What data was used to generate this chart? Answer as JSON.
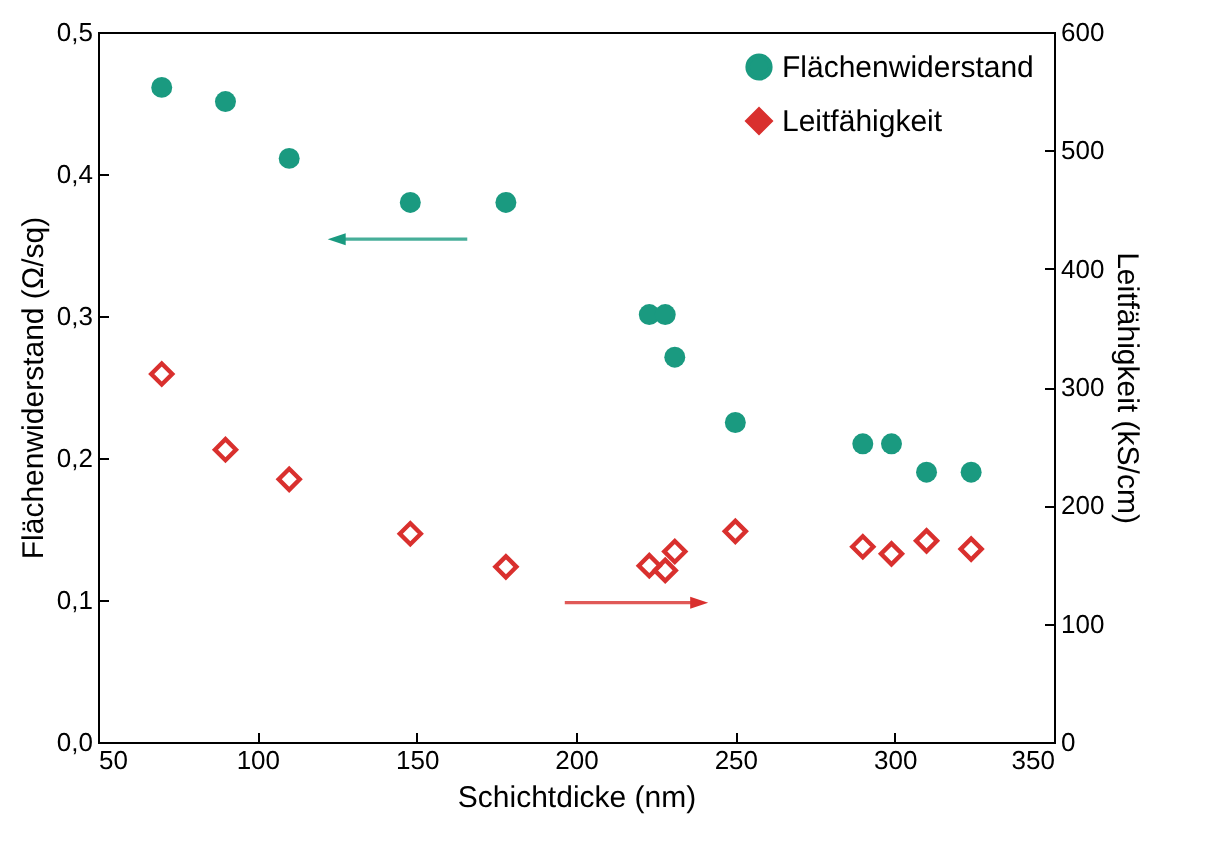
{
  "chart_data": {
    "type": "scatter",
    "xlabel": "Schichtdicke (nm)",
    "ylabel": "Flächenwiderstand (Ω/sq)",
    "y2label": "Leitfähigkeit (kS/cm)",
    "x": [
      70,
      90,
      110,
      148,
      178,
      223,
      228,
      231,
      250,
      290,
      299,
      310,
      324
    ],
    "series": [
      {
        "name": "Flächenwiderstand",
        "color": "#1a9a80",
        "marker": "circle",
        "values": [
          0.461,
          0.451,
          0.411,
          0.38,
          0.38,
          0.301,
          0.301,
          0.271,
          0.225,
          0.21,
          0.21,
          0.19,
          0.19
        ]
      },
      {
        "name": "Leitfähigkeit",
        "color": "#d9302e",
        "marker": "diamond",
        "axis": "y2",
        "values": [
          311,
          247,
          222,
          176,
          148,
          149,
          145,
          161,
          178,
          165,
          159,
          170,
          163
        ]
      }
    ],
    "xlim": [
      50,
      350
    ],
    "xticks": [
      50,
      100,
      150,
      200,
      250,
      300,
      350
    ],
    "ylim": [
      0,
      0.5
    ],
    "yticks": [
      {
        "value": 0,
        "label": "0,0"
      },
      {
        "value": 0.1,
        "label": "0,1"
      },
      {
        "value": 0.2,
        "label": "0,2"
      },
      {
        "value": 0.3,
        "label": "0,3"
      },
      {
        "value": 0.4,
        "label": "0,4"
      },
      {
        "value": 0.5,
        "label": "0,5"
      }
    ],
    "y2lim": [
      0,
      600
    ],
    "y2ticks": [
      0,
      100,
      200,
      300,
      400,
      500,
      600
    ],
    "legend": "top right",
    "grid": false
  }
}
